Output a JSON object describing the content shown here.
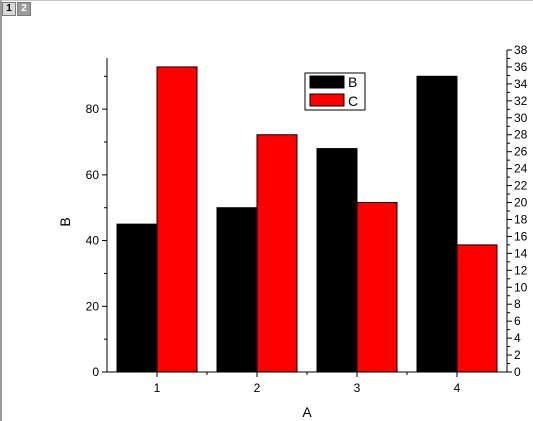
{
  "tabs": [
    {
      "label": "1",
      "active": true
    },
    {
      "label": "2",
      "active": false
    }
  ],
  "chart_data": {
    "type": "bar",
    "xlabel": "A",
    "ylabel": "B",
    "categories": [
      "1",
      "2",
      "3",
      "4"
    ],
    "left_axis": {
      "range": [
        0,
        98
      ],
      "ticks": [
        0,
        20,
        40,
        60,
        80
      ]
    },
    "right_axis": {
      "range": [
        0,
        38
      ],
      "ticks": [
        0,
        2,
        4,
        6,
        8,
        10,
        12,
        14,
        16,
        18,
        20,
        22,
        24,
        26,
        28,
        30,
        32,
        34,
        36,
        38
      ]
    },
    "series": [
      {
        "name": "B",
        "axis": "left",
        "color": "#000000",
        "values": [
          45,
          50,
          68,
          90
        ]
      },
      {
        "name": "C",
        "axis": "right",
        "color": "#ff0000",
        "values": [
          36,
          28,
          20,
          15
        ]
      }
    ],
    "legend": {
      "placement": "top-center"
    },
    "grid": false
  }
}
